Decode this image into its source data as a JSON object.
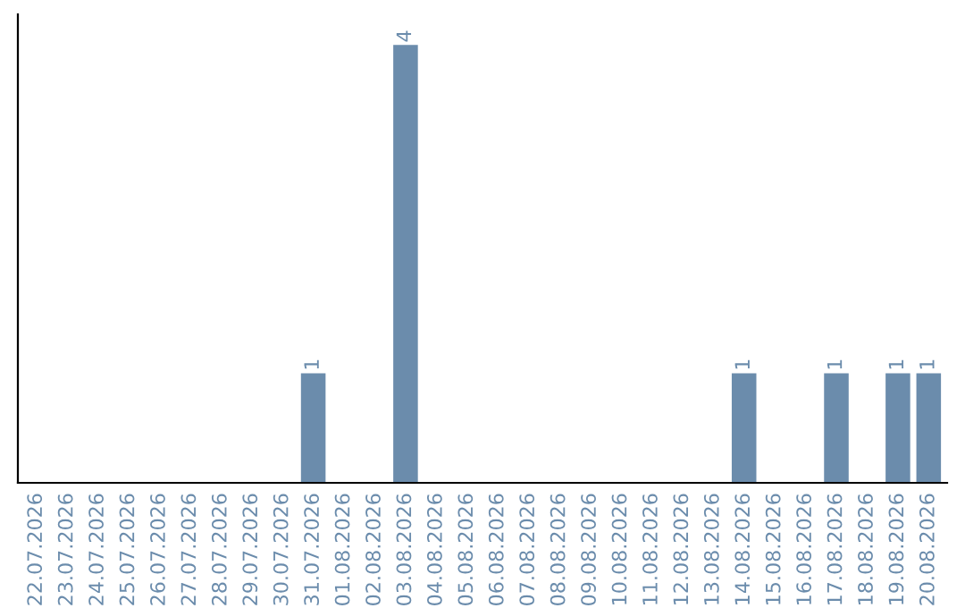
{
  "chart_data": {
    "type": "bar",
    "categories": [
      "22.07.2026",
      "23.07.2026",
      "24.07.2026",
      "25.07.2026",
      "26.07.2026",
      "27.07.2026",
      "28.07.2026",
      "29.07.2026",
      "30.07.2026",
      "31.07.2026",
      "01.08.2026",
      "02.08.2026",
      "03.08.2026",
      "04.08.2026",
      "05.08.2026",
      "06.08.2026",
      "07.08.2026",
      "08.08.2026",
      "09.08.2026",
      "10.08.2026",
      "11.08.2026",
      "12.08.2026",
      "13.08.2026",
      "14.08.2026",
      "15.08.2026",
      "16.08.2026",
      "17.08.2026",
      "18.08.2026",
      "19.08.2026",
      "20.08.2026"
    ],
    "values": [
      0,
      0,
      0,
      0,
      0,
      0,
      0,
      0,
      0,
      1,
      0,
      0,
      4,
      0,
      0,
      0,
      0,
      0,
      0,
      0,
      0,
      0,
      0,
      1,
      0,
      0,
      1,
      0,
      1,
      1
    ],
    "value_labels": [
      null,
      null,
      null,
      null,
      null,
      null,
      null,
      null,
      null,
      "1",
      null,
      null,
      "4",
      null,
      null,
      null,
      null,
      null,
      null,
      null,
      null,
      null,
      null,
      "1",
      null,
      null,
      "1",
      null,
      "1",
      "1"
    ],
    "color": "#6b8cac",
    "grid": false,
    "legend": false
  }
}
